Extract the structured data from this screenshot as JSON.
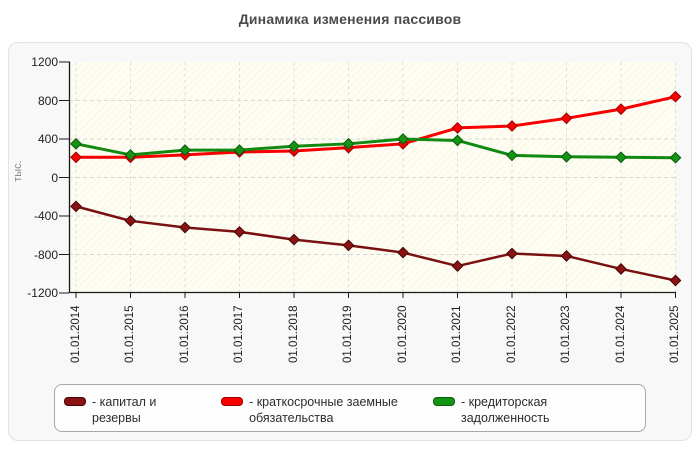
{
  "title": "Динамика изменения пассивов",
  "y_axis": {
    "label": "тыс.",
    "ticks": [
      "1200",
      "800",
      "400",
      "0",
      "-400",
      "-800",
      "-1200"
    ],
    "tick_values": [
      1200,
      800,
      400,
      0,
      -400,
      -800,
      -1200
    ]
  },
  "chart_data": {
    "type": "line",
    "title": "Динамика изменения пассивов",
    "ylabel": "тыс.",
    "ylim": [
      -1200,
      1200
    ],
    "grid": true,
    "legend_position": "bottom",
    "categories": [
      "01.01.2014",
      "01.01.2015",
      "01.01.2016",
      "01.01.2017",
      "01.01.2018",
      "01.01.2019",
      "01.01.2020",
      "01.01.2021",
      "01.01.2022",
      "01.01.2023",
      "01.01.2024",
      "01.01.2025"
    ],
    "series": [
      {
        "name": "капитал и резервы",
        "color": "#7a1111",
        "marker_fill": "#8b1212",
        "marker_border": "#420505",
        "line_width": 2.5,
        "values": [
          -300,
          -450,
          -520,
          -565,
          -645,
          -705,
          -780,
          -920,
          -790,
          -815,
          -950,
          -1070
        ]
      },
      {
        "name": "краткосрочные заемные обязательства",
        "color": "#f80000",
        "marker_fill": "#f80000",
        "marker_border": "#9b0000",
        "line_width": 3,
        "values": [
          210,
          210,
          235,
          265,
          275,
          310,
          350,
          515,
          535,
          615,
          710,
          840
        ]
      },
      {
        "name": "кредиторская задолженность",
        "color": "#128a12",
        "marker_fill": "#149314",
        "marker_border": "#0a5c0a",
        "line_width": 3,
        "values": [
          350,
          235,
          285,
          285,
          325,
          350,
          400,
          385,
          230,
          215,
          210,
          205
        ]
      }
    ]
  },
  "legend": {
    "items": [
      {
        "text": "- капитал и резервы",
        "color": "#8b1212",
        "border": "#420505"
      },
      {
        "text": "- краткосрочные заемные обязательства",
        "color": "#f80000",
        "border": "#9b0000"
      },
      {
        "text": "- кредиторская задолженность",
        "color": "#149314",
        "border": "#0a5c0a"
      }
    ]
  },
  "colors": {
    "grid": "#d6d6d6",
    "vgrid": "#dedede",
    "axis": "#1a1a1a",
    "panel_bg": "#f8f8f8"
  }
}
